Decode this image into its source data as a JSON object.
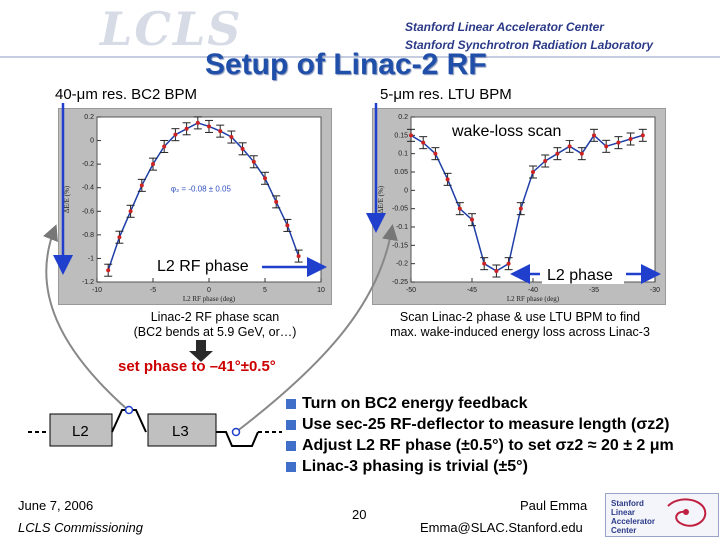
{
  "header": {
    "logo": "LCLS",
    "affiliation_1": "Stanford Linear Accelerator Center",
    "affiliation_2": "Stanford Synchrotron Radiation Laboratory"
  },
  "title": "Setup of Linac-2 RF",
  "left_panel": {
    "bpm_label": "40-μm res. BC2 BPM",
    "annotation": "L2 RF phase",
    "caption_1": "Linac-2 RF phase scan",
    "caption_2": "(BC2 bends at 5.9 GeV, or…)",
    "fit_label": "φ₂ = -0.08 ± 0.05"
  },
  "right_panel": {
    "bpm_label": "5-μm res. LTU BPM",
    "annotation_top": "wake-loss scan",
    "annotation_bottom": "L2 phase",
    "caption_1": "Scan Linac-2 phase & use LTU BPM to find",
    "caption_2": "max. wake-induced energy loss across Linac-3"
  },
  "set_phase": "set phase to –41°±0.5°",
  "schematic": {
    "l2": "L2",
    "l3": "L3"
  },
  "bullets": [
    "Turn on BC2 energy feedback",
    "Use sec-25 RF-deflector to measure length (σz2)",
    "Adjust L2 RF phase (±0.5°) to set σz2 ≈ 20 ± 2 μm",
    "Linac-3 phasing is trivial (±5°)"
  ],
  "footer": {
    "date": "June 7, 2006",
    "project": "LCLS Commissioning",
    "page": "20",
    "name": "Paul Emma",
    "email": "Emma@SLAC.Stanford.edu",
    "logo_text": "Stanford Linear Accelerator Center"
  },
  "colors": {
    "title": "#1f4fa8",
    "arrow": "#1f3fcc",
    "set_phase": "#cc0000",
    "bullet": "#3f6fc8",
    "fit_curve": "#1f3fa8",
    "data_points": "#cc2222"
  },
  "chart_data": [
    {
      "type": "scatter",
      "xlabel": "L2 RF phase (deg)",
      "ylabel": "ΔE/E (%)",
      "xlim": [
        -10,
        10
      ],
      "ylim": [
        -1.2,
        0.2
      ],
      "x": [
        -9,
        -8,
        -7,
        -6,
        -5,
        -4,
        -3,
        -2,
        -1,
        0,
        1,
        2,
        3,
        4,
        5,
        6,
        7,
        8
      ],
      "y": [
        -1.1,
        -0.82,
        -0.6,
        -0.38,
        -0.2,
        -0.05,
        0.05,
        0.1,
        0.15,
        0.12,
        0.08,
        0.03,
        -0.07,
        -0.18,
        -0.32,
        -0.52,
        -0.72,
        -0.98
      ]
    },
    {
      "type": "scatter",
      "xlabel": "L2 RF phase (deg)",
      "ylabel": "ΔE/E (%)",
      "xlim": [
        -50,
        -30
      ],
      "ylim": [
        -0.25,
        0.2
      ],
      "x": [
        -50,
        -49,
        -48,
        -47,
        -46,
        -45,
        -44,
        -43,
        -42,
        -41,
        -40,
        -39,
        -38,
        -37,
        -36,
        -35,
        -34,
        -33,
        -32,
        -31
      ],
      "y": [
        0.15,
        0.13,
        0.1,
        0.03,
        -0.05,
        -0.08,
        -0.2,
        -0.22,
        -0.2,
        -0.05,
        0.05,
        0.08,
        0.1,
        0.12,
        0.1,
        0.15,
        0.12,
        0.13,
        0.14,
        0.15
      ]
    }
  ]
}
